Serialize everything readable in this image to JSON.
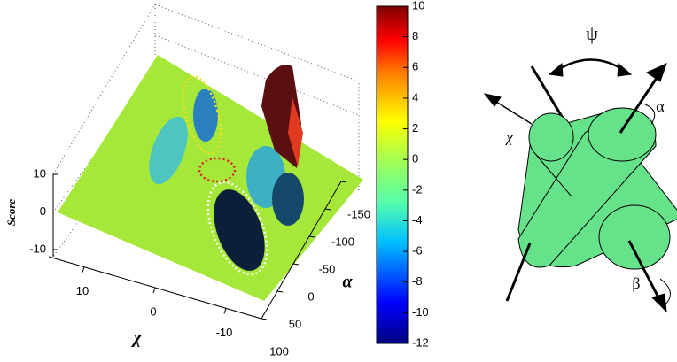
{
  "chart_data": {
    "type": "surface",
    "zlabel": "Score",
    "xlabel": "χ",
    "ylabel": "α",
    "xlim": [
      15,
      -15
    ],
    "xticks": [
      10,
      0,
      -10
    ],
    "ylim": [
      100,
      -150
    ],
    "yticks": [
      100,
      50,
      0,
      -50,
      -100,
      -150
    ],
    "zlim": [
      -10,
      10
    ],
    "zticks": [
      10,
      0,
      -10
    ],
    "colorbar": {
      "lim": [
        -12,
        10
      ],
      "ticks": [
        10,
        8,
        6,
        4,
        2,
        0,
        -2,
        -4,
        -6,
        -8,
        -10,
        -12
      ]
    }
  },
  "diagram": {
    "psi": "ψ",
    "alpha": "α",
    "beta": "β",
    "chi": "χ"
  }
}
